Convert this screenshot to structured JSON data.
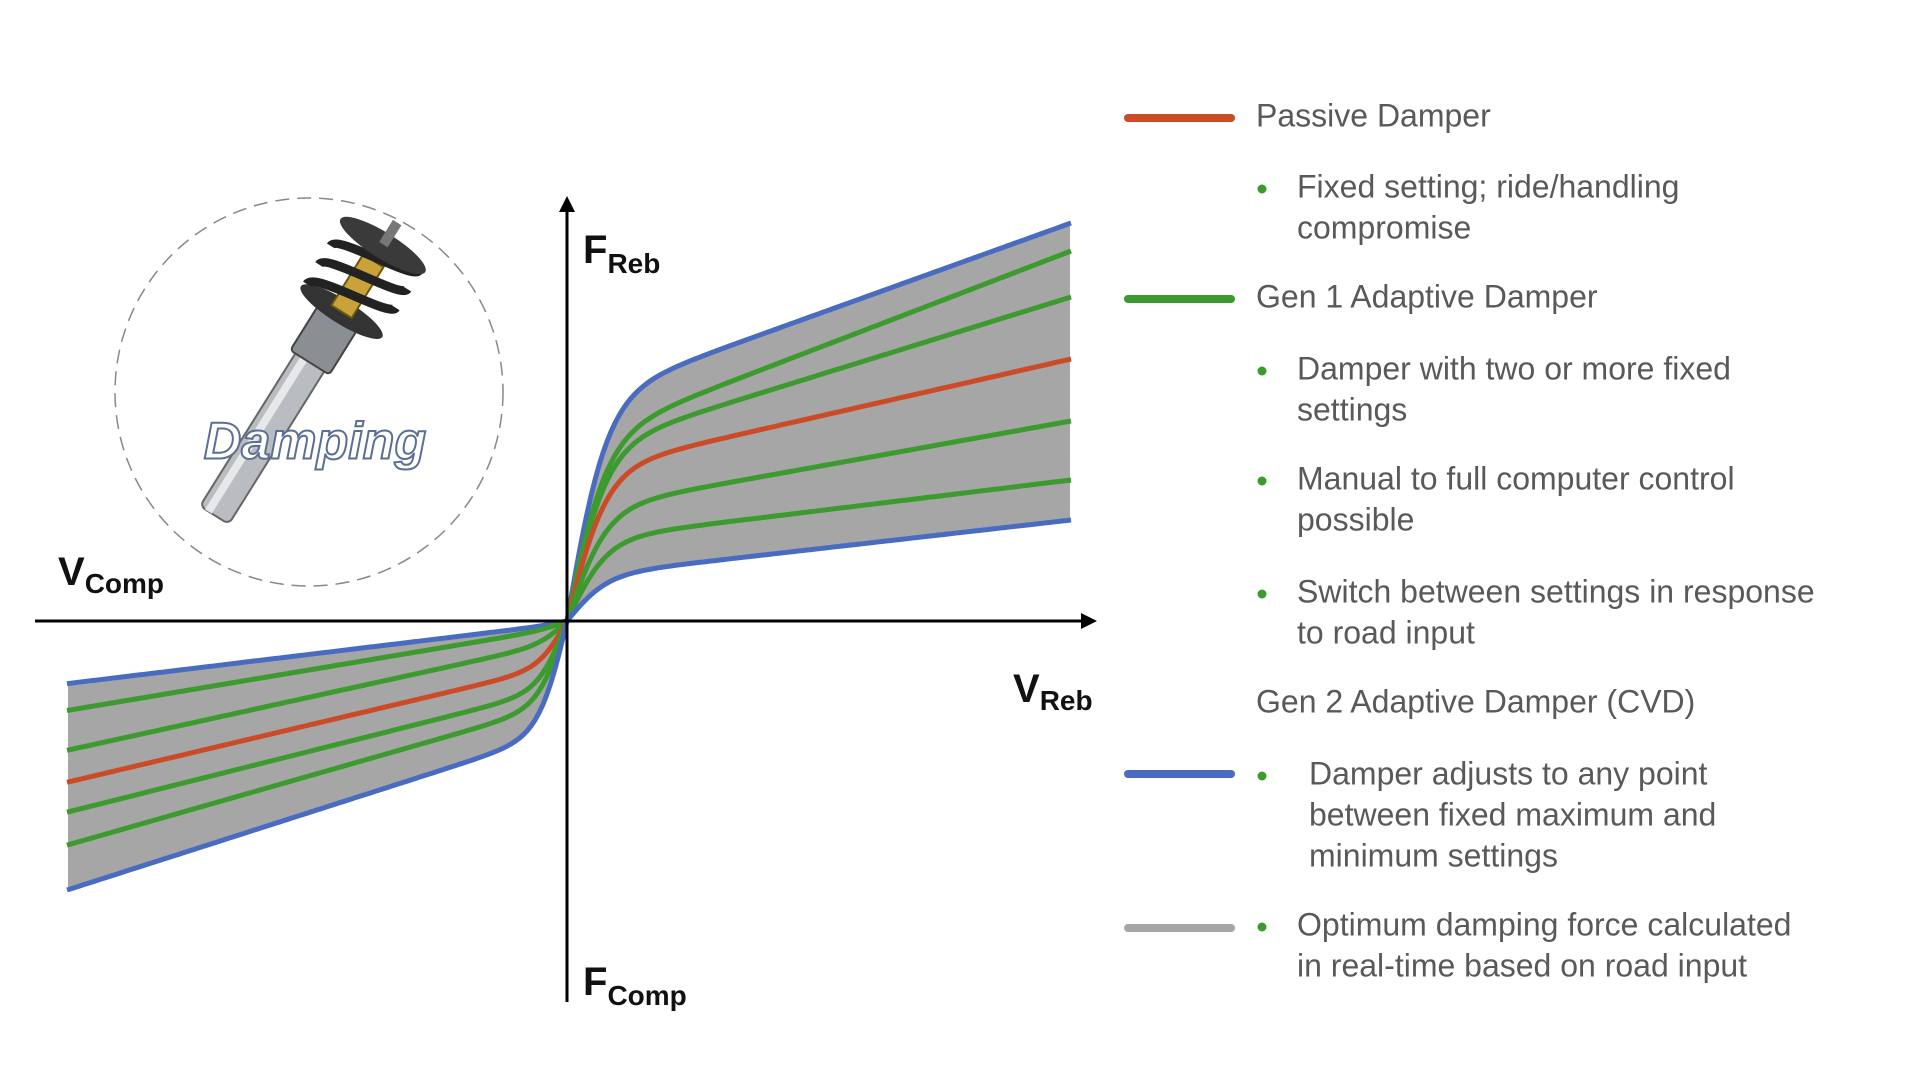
{
  "diagram": {
    "axis_labels": {
      "f_reb": {
        "main": "F",
        "sub": "Reb"
      },
      "f_comp": {
        "main": "F",
        "sub": "Comp"
      },
      "v_comp": {
        "main": "V",
        "sub": "Comp"
      },
      "v_reb": {
        "main": "V",
        "sub": "Reb"
      }
    },
    "image_label": "Damping"
  },
  "legend": {
    "passive": {
      "title": "Passive Damper",
      "bullets": [
        [
          "Fixed setting; ride/handling",
          "compromise"
        ]
      ]
    },
    "gen1": {
      "title": "Gen 1 Adaptive Damper",
      "bullets": [
        [
          "Damper with two or more fixed",
          "settings"
        ],
        [
          "Manual to full computer control",
          "possible"
        ],
        [
          "Switch between settings in response",
          "to road input"
        ]
      ]
    },
    "gen2": {
      "title": "Gen 2 Adaptive Damper (CVD)",
      "bullets": [
        [
          "Damper adjusts to any point",
          "between fixed maximum and",
          "minimum settings"
        ],
        [
          "Optimum damping force calculated",
          "in real-time based on road input"
        ]
      ]
    }
  }
}
